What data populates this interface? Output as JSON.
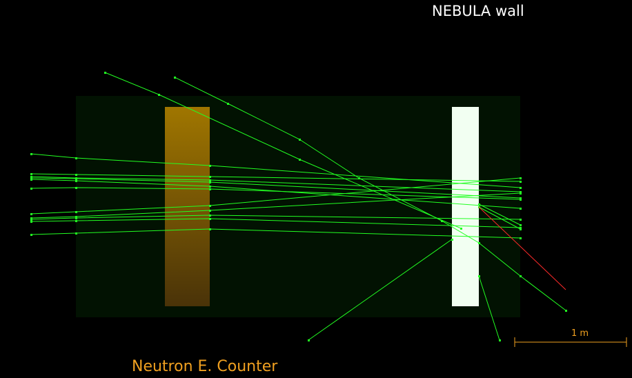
{
  "labels": {
    "nebula_wall": "NEBULA wall",
    "counter": "Neutron E. Counter",
    "scale": "1 m"
  },
  "colors": {
    "background": "#000000",
    "detector_region": "#021202",
    "counter_top": "#a07600",
    "counter_bottom": "#4a3308",
    "nebula_wall": "#f2fff2",
    "track": "#22ff22",
    "track_secondary": "#ff2a2a",
    "label_orange": "#f0a020",
    "label_white": "#ffffff"
  }
}
